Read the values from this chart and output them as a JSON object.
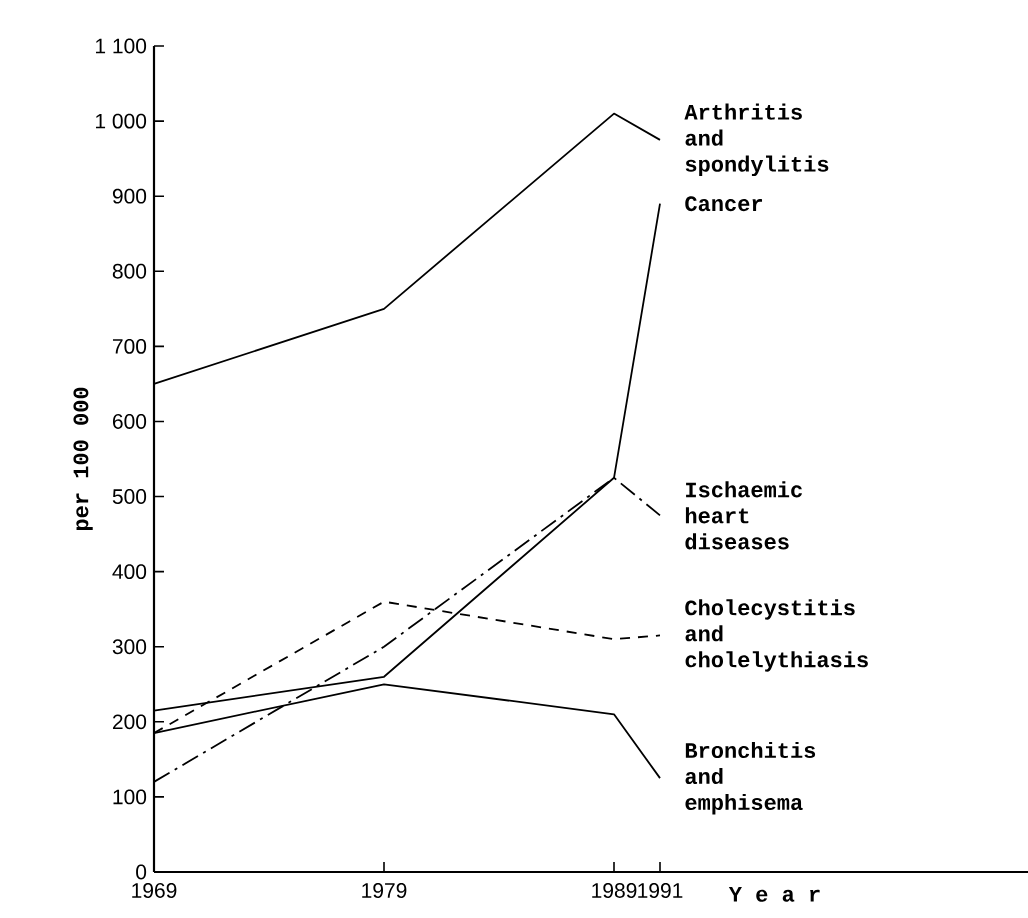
{
  "chart_data": {
    "type": "line",
    "xlabel": "Y e a r",
    "ylabel": "per 100 000",
    "x": [
      1969,
      1979,
      1989,
      1991
    ],
    "xlim": [
      1969,
      2007
    ],
    "xticks": [
      1969,
      1979,
      1989,
      1991
    ],
    "ylim": [
      0,
      1100
    ],
    "yticks": [
      0,
      100,
      200,
      300,
      400,
      500,
      600,
      700,
      800,
      900,
      {
        "value": 1000,
        "label": "1 000"
      },
      {
        "value": 1100,
        "label": "1 100"
      }
    ],
    "grid": false,
    "legend": false,
    "marker": "none",
    "series": [
      {
        "name": "Arthritis and spondylitis",
        "color": "#000000",
        "line_style": "solid",
        "values": [
          650,
          750,
          1010,
          975
        ]
      },
      {
        "name": "Cancer",
        "color": "#000000",
        "line_style": "solid",
        "values": [
          215,
          260,
          525,
          890
        ]
      },
      {
        "name": "Ischaemic heart diseases",
        "color": "#000000",
        "line_style": "dashdot",
        "values": [
          120,
          300,
          525,
          475
        ]
      },
      {
        "name": "Cholecystitis and cholelythiasis",
        "color": "#000000",
        "line_style": "dashed",
        "values": [
          185,
          360,
          310,
          315
        ]
      },
      {
        "name": "Bronchitis and emphisema",
        "color": "#000000",
        "line_style": "solid",
        "values": [
          185,
          250,
          210,
          125
        ]
      }
    ]
  }
}
